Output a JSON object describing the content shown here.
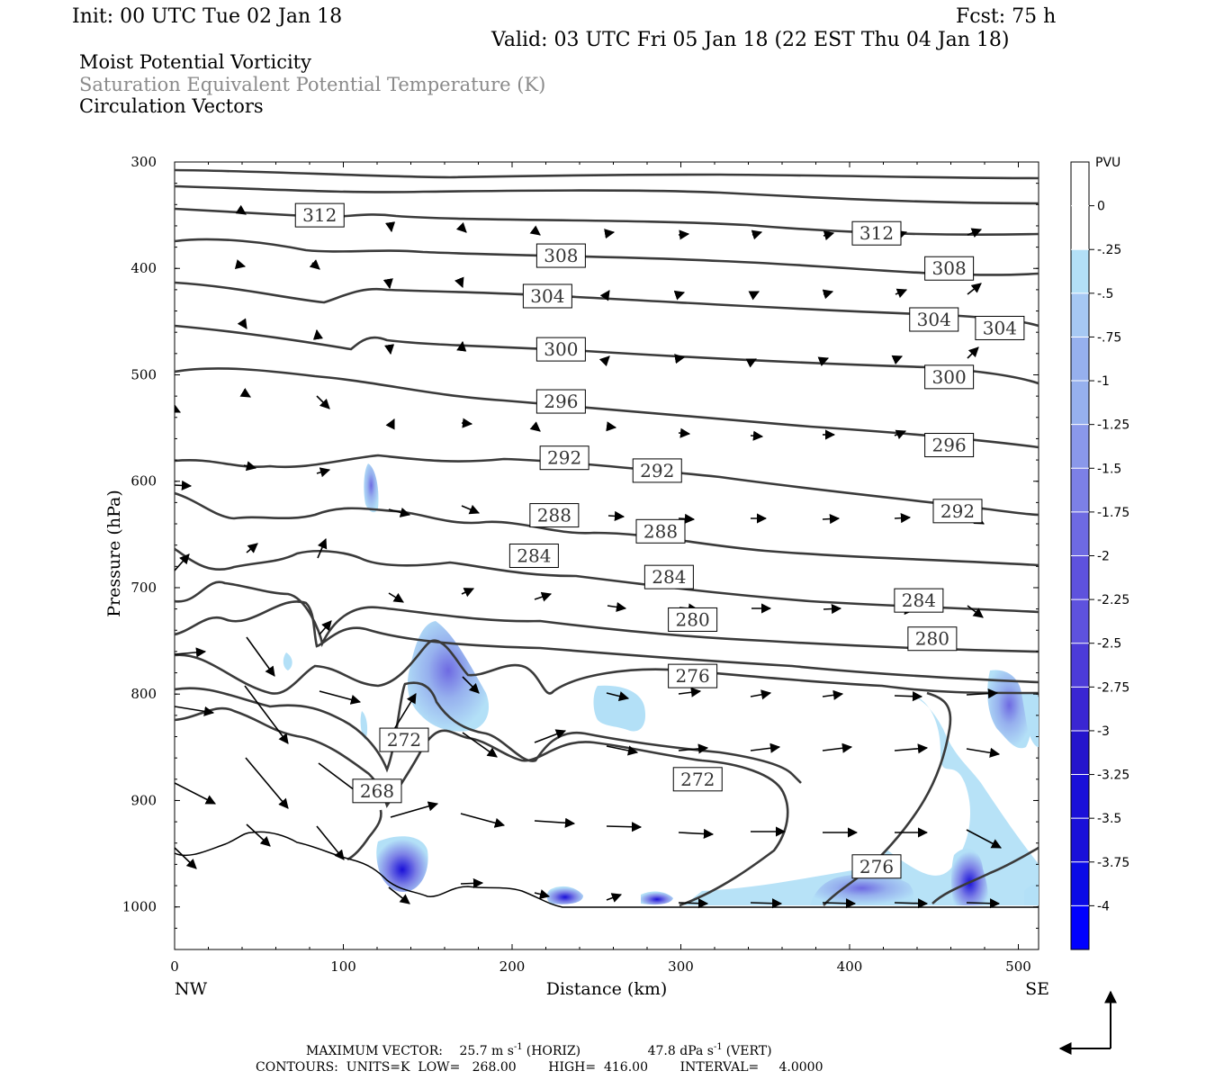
{
  "header": {
    "init": "Init: 00 UTC Tue 02 Jan 18",
    "fcst": "Fcst:   75 h",
    "valid": "Valid: 03 UTC Fri 05 Jan 18 (22 EST Thu 04 Jan 18)"
  },
  "titles": {
    "line1": "Moist Potential Vorticity",
    "line2": "Saturation Equivalent Potential Temperature (K)",
    "line3": "Circulation Vectors"
  },
  "colors": {
    "contour": "#3a3a3a",
    "title_gray": "#8a8a8a",
    "shade": [
      "#b3e0f7",
      "#a6c8f3",
      "#96b0ee",
      "#8a98ea",
      "#7c80e6",
      "#6e6ae2",
      "#5e52dd",
      "#4c3bd8",
      "#3a26d2",
      "#2515cc",
      "#1a10d8",
      "#0a0ae6",
      "#0000ff"
    ]
  },
  "chart_data": {
    "type": "cross-section",
    "xlabel": "Distance (km)",
    "ylabel": "Pressure (hPa)",
    "x_ticks": [
      "0",
      "100",
      "200",
      "300",
      "400",
      "500"
    ],
    "y_ticks": [
      "300",
      "400",
      "500",
      "600",
      "700",
      "800",
      "900",
      "1000"
    ],
    "xlim": [
      0,
      512
    ],
    "ylim": [
      1040,
      300
    ],
    "x_end_labels": {
      "left": "NW",
      "right": "SE"
    },
    "contour_labels": [
      {
        "text": "312",
        "x": 86,
        "p": 350
      },
      {
        "text": "312",
        "x": 416,
        "p": 367
      },
      {
        "text": "308",
        "x": 229,
        "p": 388
      },
      {
        "text": "308",
        "x": 459,
        "p": 400
      },
      {
        "text": "304",
        "x": 221,
        "p": 426
      },
      {
        "text": "304",
        "x": 450,
        "p": 448
      },
      {
        "text": "304",
        "x": 489,
        "p": 456
      },
      {
        "text": "300",
        "x": 229,
        "p": 476
      },
      {
        "text": "300",
        "x": 459,
        "p": 502
      },
      {
        "text": "296",
        "x": 229,
        "p": 525
      },
      {
        "text": "296",
        "x": 459,
        "p": 566
      },
      {
        "text": "292",
        "x": 231,
        "p": 578
      },
      {
        "text": "292",
        "x": 286,
        "p": 590
      },
      {
        "text": "292",
        "x": 464,
        "p": 628
      },
      {
        "text": "288",
        "x": 225,
        "p": 632
      },
      {
        "text": "288",
        "x": 288,
        "p": 647
      },
      {
        "text": "284",
        "x": 213,
        "p": 670
      },
      {
        "text": "284",
        "x": 293,
        "p": 690
      },
      {
        "text": "284",
        "x": 441,
        "p": 712
      },
      {
        "text": "280",
        "x": 307,
        "p": 730
      },
      {
        "text": "280",
        "x": 449,
        "p": 748
      },
      {
        "text": "276",
        "x": 307,
        "p": 783
      },
      {
        "text": "276",
        "x": 416,
        "p": 962
      },
      {
        "text": "272",
        "x": 136,
        "p": 843
      },
      {
        "text": "272",
        "x": 310,
        "p": 880
      },
      {
        "text": "268",
        "x": 120,
        "p": 891
      }
    ],
    "colorbar": {
      "unit": "PVU",
      "labels": [
        "0",
        "-.25",
        "-.5",
        "-.75",
        "-1",
        "-1.25",
        "-1.5",
        "-1.75",
        "-2",
        "-2.25",
        "-2.5",
        "-2.75",
        "-3",
        "-3.25",
        "-3.5",
        "-3.75",
        "-4"
      ]
    }
  },
  "footer": {
    "maxvec_label": "MAXIMUM VECTOR:",
    "maxvec_h": "25.7 m s",
    "maxvec_h_unit": "(HORIZ)",
    "maxvec_v": "47.8 dPa s",
    "maxvec_v_unit": "(VERT)",
    "sup": "-1",
    "contours": "CONTOURS:  UNITS=K  LOW=   268.00        HIGH=  416.00        INTERVAL=     4.0000"
  }
}
